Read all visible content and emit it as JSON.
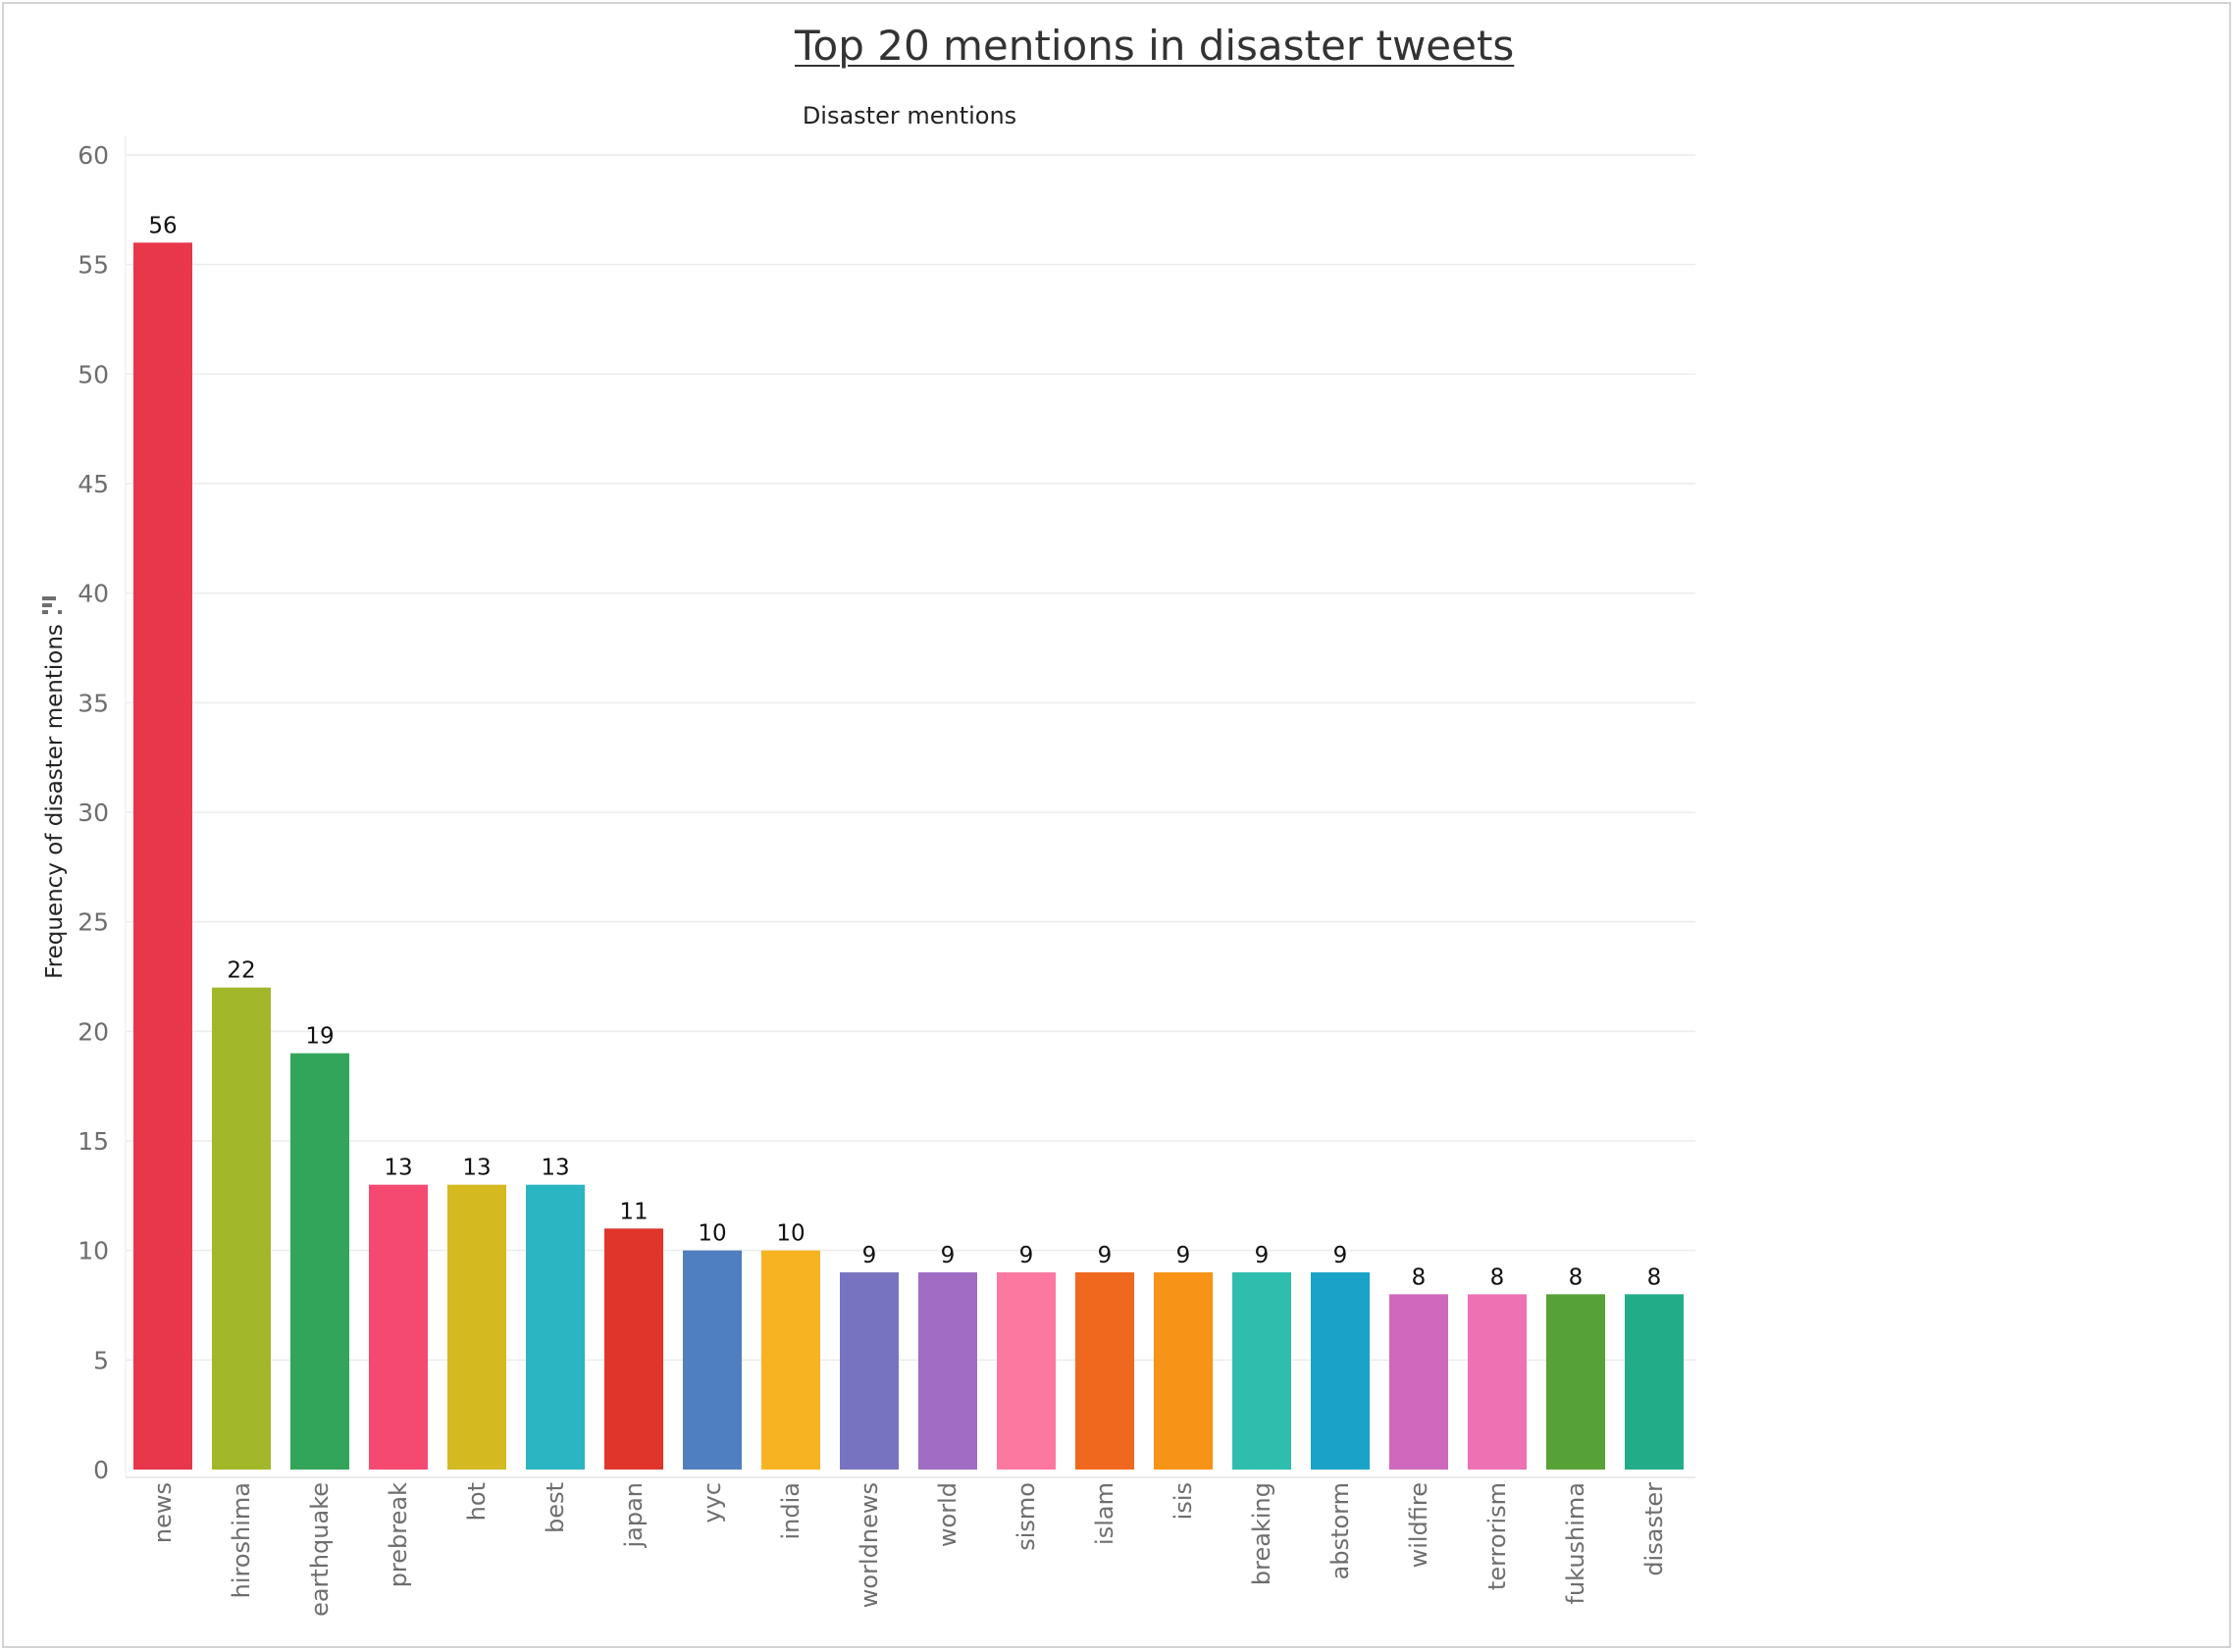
{
  "page_title": "Top 20 mentions in disaster tweets",
  "chart_data": {
    "type": "bar",
    "title": "Top 20 mentions in disaster tweets",
    "header": "Disaster mentions",
    "xlabel": "",
    "ylabel": "Frequency of disaster mentions",
    "ylim": [
      0,
      60
    ],
    "yticks": [
      0,
      5,
      10,
      15,
      20,
      25,
      30,
      35,
      40,
      45,
      50,
      55,
      60
    ],
    "grid": true,
    "sort_icon": "sort-descending-icon",
    "categories": [
      "news",
      "hiroshima",
      "earthquake",
      "prebreak",
      "hot",
      "best",
      "japan",
      "yyc",
      "india",
      "worldnews",
      "world",
      "sismo",
      "islam",
      "isis",
      "breaking",
      "abstorm",
      "wildfire",
      "terrorism",
      "fukushima",
      "disaster"
    ],
    "values": [
      56,
      22,
      19,
      13,
      13,
      13,
      11,
      10,
      10,
      9,
      9,
      9,
      9,
      9,
      9,
      9,
      8,
      8,
      8,
      8
    ],
    "colors": [
      "#e8364b",
      "#a2b72a",
      "#33a55a",
      "#f44a72",
      "#d4b921",
      "#2bb4c1",
      "#e0352a",
      "#4f7fbf",
      "#f7b321",
      "#7873c0",
      "#a06cc4",
      "#fd78a0",
      "#f0681e",
      "#f79316",
      "#2fbdae",
      "#1aa2c9",
      "#d068be",
      "#ee71b3",
      "#57a236",
      "#22ad88"
    ]
  }
}
